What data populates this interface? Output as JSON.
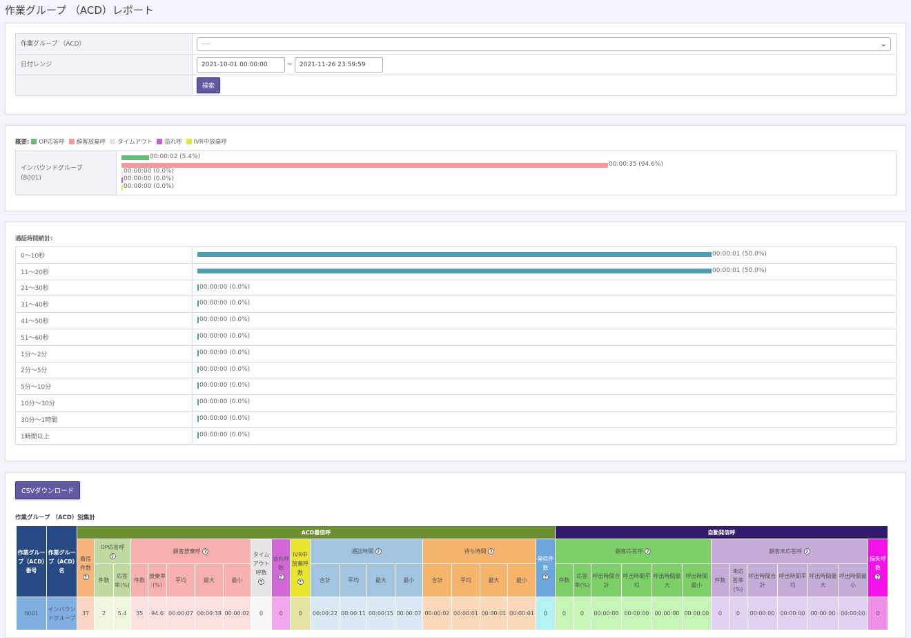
{
  "page": {
    "title": "作業グループ （ACD）レポート"
  },
  "filter": {
    "group_label": "作業グループ （ACD）",
    "group_value": "----",
    "date_label": "日付レンジ",
    "date_from": "2021-10-01 00:00:00",
    "date_sep": "~",
    "date_to": "2021-11-26 23:59:59",
    "search_label": "検索"
  },
  "summary": {
    "legend_title": "概要:",
    "legend": [
      {
        "label": "OP応答呼",
        "color": "#5dbf74"
      },
      {
        "label": "顧客放棄呼",
        "color": "#f49a9a"
      },
      {
        "label": "タイムアウト",
        "color": "#e3e3e3"
      },
      {
        "label": "溢れ呼",
        "color": "#c85ccf"
      },
      {
        "label": "IVR中放棄呼",
        "color": "#e8e43c"
      }
    ],
    "group_name": "インバウンドグループ",
    "group_id": "(8001)",
    "bars": [
      {
        "label": "00:00:02 (5.4%)",
        "pct": 5.4,
        "color": "#5dbf74"
      },
      {
        "label": "00:00:35 (94.6%)",
        "pct": 94.6,
        "color": "#f49a9a"
      },
      {
        "label": "00:00:00 (0.0%)",
        "pct": 0,
        "color": "#e3e3e3"
      },
      {
        "label": "00:00:00 (0.0%)",
        "pct": 0,
        "color": "#c85ccf"
      },
      {
        "label": "00:00:00 (0.0%)",
        "pct": 0,
        "color": "#e8e43c"
      }
    ]
  },
  "stats": {
    "title": "通話時間統計:",
    "rows": [
      {
        "range": "0～10秒",
        "label": "00:00:01 (50.0%)",
        "pct": 50
      },
      {
        "range": "11～20秒",
        "label": "00:00:01 (50.0%)",
        "pct": 50
      },
      {
        "range": "21～30秒",
        "label": "00:00:00 (0.0%)",
        "pct": 0
      },
      {
        "range": "31～40秒",
        "label": "00:00:00 (0.0%)",
        "pct": 0
      },
      {
        "range": "41～50秒",
        "label": "00:00:00 (0.0%)",
        "pct": 0
      },
      {
        "range": "51～60秒",
        "label": "00:00:00 (0.0%)",
        "pct": 0
      },
      {
        "range": "1分～2分",
        "label": "00:00:00 (0.0%)",
        "pct": 0
      },
      {
        "range": "2分～5分",
        "label": "00:00:00 (0.0%)",
        "pct": 0
      },
      {
        "range": "5分～10分",
        "label": "00:00:00 (0.0%)",
        "pct": 0
      },
      {
        "range": "10分～30分",
        "label": "00:00:00 (0.0%)",
        "pct": 0
      },
      {
        "range": "30分～1時間",
        "label": "00:00:00 (0.0%)",
        "pct": 0
      },
      {
        "range": "1時間以上",
        "label": "00:00:00 (0.0%)",
        "pct": 0
      }
    ]
  },
  "aggregate": {
    "csv_label": "CSVダウンロード",
    "title": "作業グループ （ACD）別集計",
    "groups": {
      "acd": "ACD着信呼",
      "auto": "自動発信呼"
    },
    "headers": {
      "group_no": "作業グループ（ACD）番号",
      "group_name": "作業グループ（ACD）名",
      "incoming_count": "着信件数",
      "op_answer": "OP応答呼",
      "cust_abandon": "顧客放棄呼",
      "timeout": "タイムアウト呼数",
      "overflow": "溢れ呼数",
      "ivr_abandon": "IVR中放棄呼数",
      "talk_time": "通話時間",
      "wait_time": "待ち時間",
      "out_count": "発信件数",
      "cust_answer": "顧客応答呼",
      "cust_noanswer": "顧客未応答呼",
      "lost": "損失呼数",
      "count": "件数",
      "answer_rate": "応答率(%)",
      "abandon_rate": "放棄率(%)",
      "noanswer_rate": "未応答率(%)",
      "total": "合計",
      "avg": "平均",
      "max": "最大",
      "min": "最小",
      "ring_total": "呼出時間合計",
      "ring_avg": "呼出時間平均",
      "ring_max": "呼出時間最大",
      "ring_min": "呼出時間最小"
    },
    "row": {
      "group_no": "8001",
      "group_name": "インバウンドグループ",
      "incoming": "37",
      "op_count": "2",
      "op_rate": "5.4",
      "ab_count": "35",
      "ab_rate": "94.6",
      "ab_avg": "00:00:07",
      "ab_max": "00:00:38",
      "ab_min": "00:00:02",
      "timeout": "0",
      "overflow": "0",
      "ivr": "0",
      "talk_total": "00:00:22",
      "talk_avg": "00:00:11",
      "talk_max": "00:00:15",
      "talk_min": "00:00:07",
      "wait_total": "00:00:02",
      "wait_avg": "00:00:01",
      "wait_max": "00:00:01",
      "wait_min": "00:00:01",
      "out_count": "0",
      "ans_count": "0",
      "ans_rate": "0",
      "ans_total": "00:00:00",
      "ans_avg": "00:00:00",
      "ans_max": "00:00:00",
      "ans_min": "00:00:00",
      "na_count": "0",
      "na_rate": "0",
      "na_total": "00:00:00",
      "na_avg": "00:00:00",
      "na_max": "00:00:00",
      "na_min": "00:00:00",
      "lost": "0"
    }
  }
}
